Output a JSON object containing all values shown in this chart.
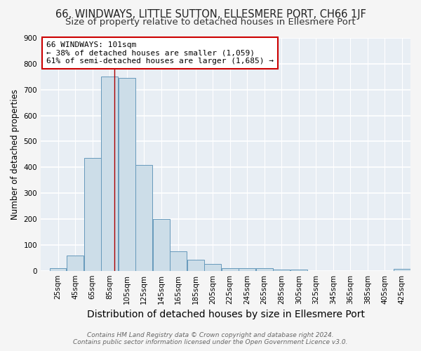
{
  "title1": "66, WINDWAYS, LITTLE SUTTON, ELLESMERE PORT, CH66 1JF",
  "title2": "Size of property relative to detached houses in Ellesmere Port",
  "xlabel": "Distribution of detached houses by size in Ellesmere Port",
  "ylabel": "Number of detached properties",
  "footnote1": "Contains HM Land Registry data © Crown copyright and database right 2024.",
  "footnote2": "Contains public sector information licensed under the Open Government Licence v3.0.",
  "bin_starts": [
    25,
    45,
    65,
    85,
    105,
    125,
    145,
    165,
    185,
    205,
    225,
    245,
    265,
    285,
    305,
    325,
    345,
    365,
    385,
    405,
    425
  ],
  "bar_heights": [
    10,
    60,
    435,
    750,
    745,
    410,
    200,
    75,
    42,
    27,
    10,
    10,
    10,
    5,
    5,
    0,
    0,
    0,
    0,
    0,
    7
  ],
  "bin_width": 20,
  "bar_color": "#ccdde8",
  "bar_edge_color": "#6699bb",
  "property_size": 101,
  "annotation_title": "66 WINDWAYS: 101sqm",
  "annotation_line1": "← 38% of detached houses are smaller (1,059)",
  "annotation_line2": "61% of semi-detached houses are larger (1,685) →",
  "annotation_box_facecolor": "#ffffff",
  "annotation_box_edgecolor": "#cc0000",
  "vline_color": "#aa0000",
  "ylim": [
    0,
    900
  ],
  "yticks": [
    0,
    100,
    200,
    300,
    400,
    500,
    600,
    700,
    800,
    900
  ],
  "axes_facecolor": "#e8eef4",
  "fig_facecolor": "#f5f5f5",
  "grid_color": "#ffffff",
  "title1_fontsize": 10.5,
  "title2_fontsize": 9.5,
  "xlabel_fontsize": 10,
  "ylabel_fontsize": 8.5,
  "annotation_fontsize": 8,
  "tick_labelsize": 7.5,
  "footnote_fontsize": 6.5
}
